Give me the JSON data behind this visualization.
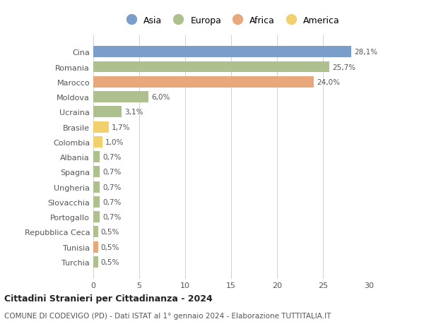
{
  "countries": [
    "Cina",
    "Romania",
    "Marocco",
    "Moldova",
    "Ucraina",
    "Brasile",
    "Colombia",
    "Albania",
    "Spagna",
    "Ungheria",
    "Slovacchia",
    "Portogallo",
    "Repubblica Ceca",
    "Tunisia",
    "Turchia"
  ],
  "values": [
    28.1,
    25.7,
    24.0,
    6.0,
    3.1,
    1.7,
    1.0,
    0.7,
    0.7,
    0.7,
    0.7,
    0.7,
    0.5,
    0.5,
    0.5
  ],
  "labels": [
    "28,1%",
    "25,7%",
    "24,0%",
    "6,0%",
    "3,1%",
    "1,7%",
    "1,0%",
    "0,7%",
    "0,7%",
    "0,7%",
    "0,7%",
    "0,7%",
    "0,5%",
    "0,5%",
    "0,5%"
  ],
  "continents": [
    "Asia",
    "Europa",
    "Africa",
    "Europa",
    "Europa",
    "America",
    "America",
    "Europa",
    "Europa",
    "Europa",
    "Europa",
    "Europa",
    "Europa",
    "Africa",
    "Europa"
  ],
  "colors": {
    "Asia": "#7b9dc9",
    "Europa": "#adc08e",
    "Africa": "#e8a87c",
    "America": "#f2d06b"
  },
  "legend_order": [
    "Asia",
    "Europa",
    "Africa",
    "America"
  ],
  "title": "Cittadini Stranieri per Cittadinanza - 2024",
  "subtitle": "COMUNE DI CODEVIGO (PD) - Dati ISTAT al 1° gennaio 2024 - Elaborazione TUTTITALIA.IT",
  "xlim": [
    0,
    30
  ],
  "xticks": [
    0,
    5,
    10,
    15,
    20,
    25,
    30
  ],
  "background_color": "#ffffff",
  "grid_color": "#d0d0d0"
}
